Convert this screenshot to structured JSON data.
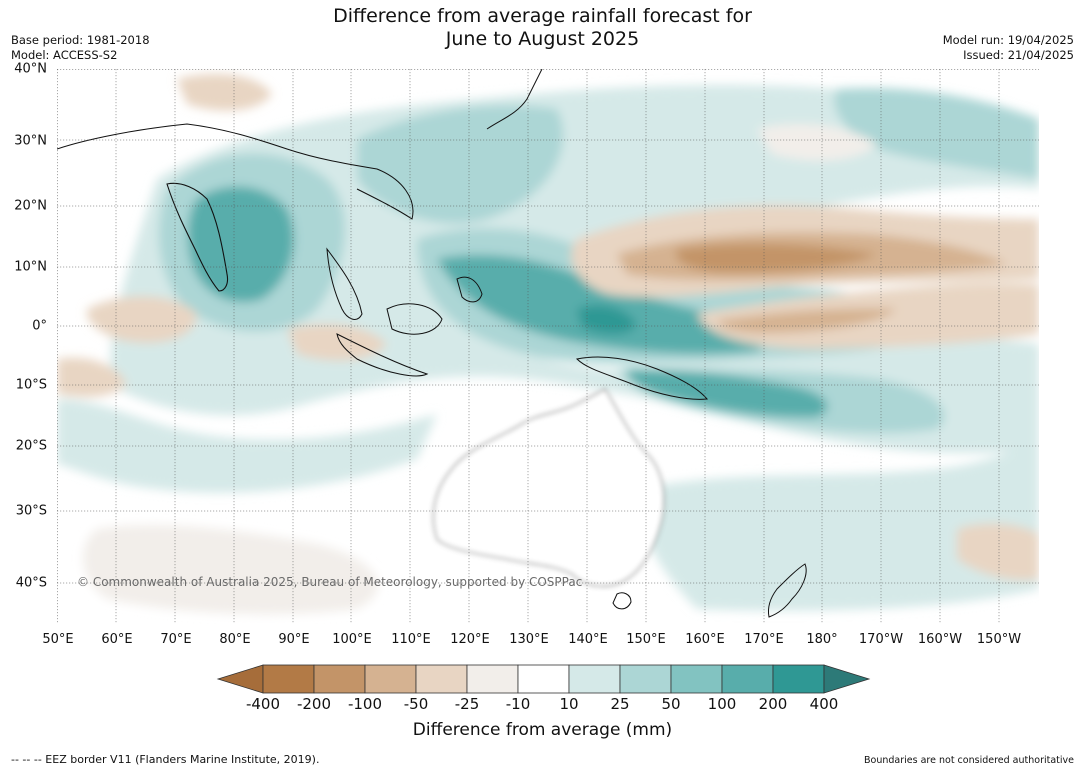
{
  "title": {
    "line1": "Difference from average rainfall forecast for",
    "line2": "June to August 2025"
  },
  "meta": {
    "base_period": "Base period: 1981-2018",
    "model": "Model: ACCESS-S2",
    "model_run": "Model run: 19/04/2025",
    "issued": "Issued: 21/04/2025"
  },
  "map": {
    "lat_labels": [
      "40°N",
      "30°N",
      "20°N",
      "10°N",
      "0°",
      "10°S",
      "20°S",
      "30°S",
      "40°S"
    ],
    "lon_labels": [
      "50°E",
      "60°E",
      "70°E",
      "80°E",
      "90°E",
      "100°E",
      "110°E",
      "120°E",
      "130°E",
      "140°E",
      "150°E",
      "160°E",
      "170°E",
      "180°",
      "170°W",
      "160°W",
      "150°W"
    ],
    "copyright": "© Commonwealth of Australia 2025, Bureau of Meteorology, supported by COSPPac"
  },
  "colorbar": {
    "label": "Difference from average (mm)",
    "ticks": [
      "-400",
      "-200",
      "-100",
      "-50",
      "-25",
      "-10",
      "10",
      "25",
      "50",
      "100",
      "200",
      "400"
    ],
    "colors": [
      "#a66d3a",
      "#b27a46",
      "#c39468",
      "#d5b291",
      "#e8d5c3",
      "#f2eeea",
      "#ffffff",
      "#d5e9e8",
      "#acd6d5",
      "#82c3c1",
      "#58adab",
      "#2f9894",
      "#2d7a78"
    ]
  },
  "footer": {
    "eez": "--  --  -- EEZ border V11 (Flanders Marine Institute, 2019).",
    "boundaries": "Boundaries are not considered authoritative"
  }
}
